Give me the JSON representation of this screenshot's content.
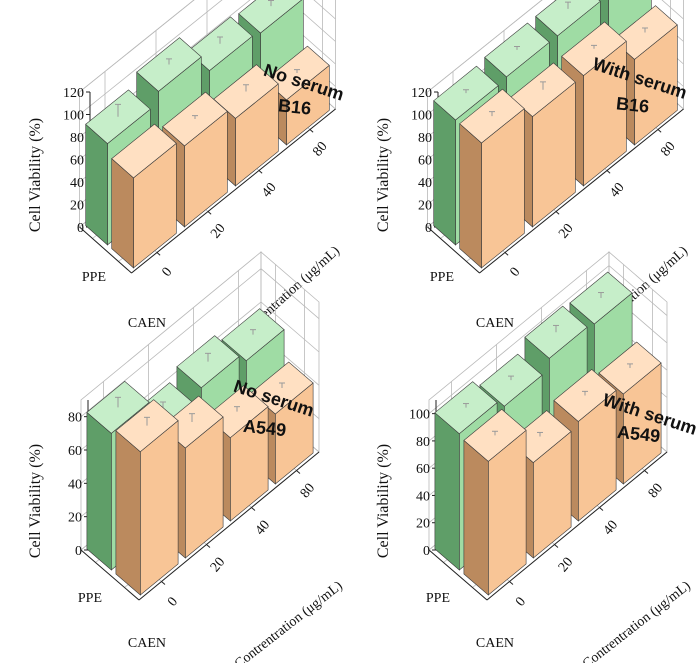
{
  "colors": {
    "PPE": {
      "front": "#9fdca4",
      "side": "#5f9e68",
      "top": "#c6eec9"
    },
    "CAEN": {
      "front": "#f8c596",
      "side": "#bb8a5e",
      "top": "#ffe0c2"
    },
    "grid": "#b9b9b9",
    "error_bar": "#9a9a9a"
  },
  "chart_data": [
    {
      "type": "bar3d",
      "annotation_line1": "No serum",
      "annotation_line2": "B16",
      "ylabel": "Cell Viability (%)",
      "xlabel": "Contrentration (μg/mL)",
      "categories": [
        "0",
        "20",
        "40",
        "80"
      ],
      "series": [
        {
          "name": "PPE",
          "values": [
            90,
            100,
            82,
            79
          ],
          "errors": [
            11,
            5,
            6,
            5
          ]
        },
        {
          "name": "CAEN",
          "values": [
            80,
            72,
            60,
            40
          ],
          "errors": [
            0,
            3,
            6,
            3
          ]
        }
      ],
      "ylim": [
        0,
        120
      ],
      "yticks": [
        0,
        20,
        40,
        60,
        80,
        100,
        120
      ]
    },
    {
      "type": "bar3d",
      "annotation_line1": "With serum",
      "annotation_line2": "B16",
      "ylabel": "Cell Viability (%)",
      "xlabel": "Contrentration (μg/mL)",
      "categories": [
        "0",
        "20",
        "40",
        "80"
      ],
      "series": [
        {
          "name": "PPE",
          "values": [
            111,
            113,
            113,
            113
          ],
          "errors": [
            3,
            3,
            6,
            11
          ]
        },
        {
          "name": "CAEN",
          "values": [
            111,
            98,
            98,
            76
          ],
          "errors": [
            4,
            7,
            3,
            4
          ]
        }
      ],
      "ylim": [
        0,
        120
      ],
      "yticks": [
        0,
        20,
        40,
        60,
        80,
        100,
        120
      ]
    },
    {
      "type": "bar3d",
      "annotation_line1": "No serum",
      "annotation_line2": "A549",
      "ylabel": "Cell Viability (%)",
      "xlabel": "Contrentration (μg/mL)",
      "categories": [
        "0",
        "20",
        "40",
        "80"
      ],
      "series": [
        {
          "name": "PPE",
          "values": [
            82,
            59,
            65,
            59
          ],
          "errors": [
            6,
            4,
            5,
            3
          ]
        },
        {
          "name": "CAEN",
          "values": [
            86,
            66,
            50,
            42
          ],
          "errors": [
            5,
            5,
            3,
            3
          ]
        }
      ],
      "ylim": [
        0,
        90
      ],
      "yticks": [
        0,
        20,
        40,
        60,
        80
      ]
    },
    {
      "type": "bar3d",
      "annotation_line1": "With serum",
      "annotation_line2": "A549",
      "ylabel": "Cell Viability (%)",
      "xlabel": "Contrentration (μg/mL)",
      "categories": [
        "0",
        "20",
        "40",
        "80"
      ],
      "series": [
        {
          "name": "PPE",
          "values": [
            100,
            93,
            101,
            99
          ],
          "errors": [
            3,
            3,
            5,
            4
          ]
        },
        {
          "name": "CAEN",
          "values": [
            98,
            70,
            73,
            66
          ],
          "errors": [
            3,
            3,
            3,
            3
          ]
        }
      ],
      "ylim": [
        0,
        110
      ],
      "yticks": [
        0,
        20,
        40,
        60,
        80,
        100
      ]
    }
  ]
}
